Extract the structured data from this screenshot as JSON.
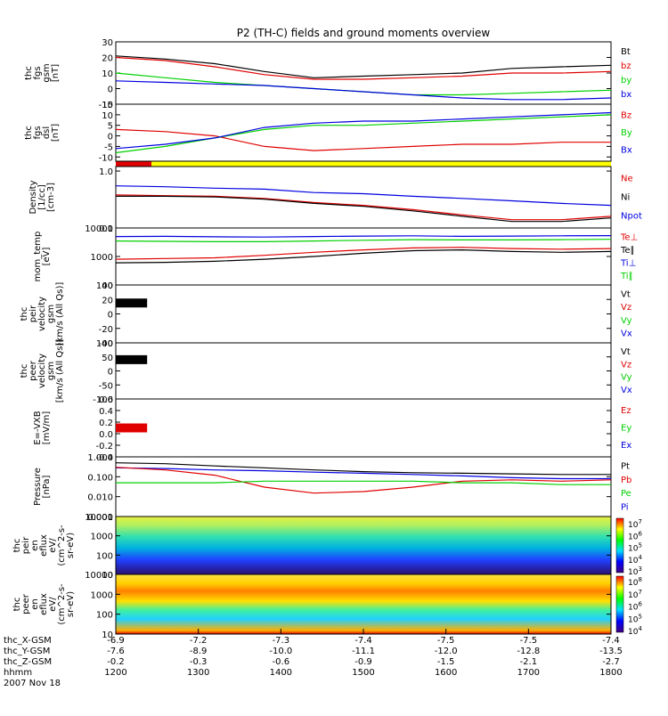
{
  "title": "P2 (TH-C) fields and ground moments overview",
  "date_label": "2007 Nov 18",
  "colors": {
    "black": "#000000",
    "red": "#e00000",
    "green": "#00d000",
    "blue": "#0000e0",
    "yellow": "#ffff00"
  },
  "chart_data": {
    "type": "line",
    "x_ticks": [
      "1200",
      "1300",
      "1400",
      "1500",
      "1600",
      "1700",
      "1800"
    ],
    "xlim": [
      1200,
      1800
    ],
    "footer_rows": [
      {
        "label": "thc_X-GSM",
        "values": [
          "-6.9",
          "-7.2",
          "-7.3",
          "-7.4",
          "-7.5",
          "-7.5",
          "-7.4"
        ]
      },
      {
        "label": "thc_Y-GSM",
        "values": [
          "-7.6",
          "-8.9",
          "-10.0",
          "-11.1",
          "-12.0",
          "-12.8",
          "-13.5"
        ]
      },
      {
        "label": "thc_Z-GSM",
        "values": [
          "-0.2",
          "-0.3",
          "-0.6",
          "-0.9",
          "-1.5",
          "-2.1",
          "-2.7"
        ]
      },
      {
        "label": "hhmm",
        "values": [
          "1200",
          "1300",
          "1400",
          "1500",
          "1600",
          "1700",
          "1800"
        ]
      }
    ],
    "panels": [
      {
        "id": "fgs_gsm",
        "ylabel": [
          "thc",
          "fgs",
          "gsm",
          "[nT]"
        ],
        "ylim": [
          -10,
          30
        ],
        "scale": "linear",
        "ticks": [
          "30",
          "20",
          "10",
          "0",
          "-10"
        ],
        "tick_vals": [
          30,
          20,
          10,
          0,
          -10
        ],
        "legend": [
          {
            "text": "Bt",
            "color": "black"
          },
          {
            "text": "bz",
            "color": "red"
          },
          {
            "text": "by",
            "color": "green"
          },
          {
            "text": "bx",
            "color": "blue"
          }
        ],
        "series": [
          {
            "name": "Bt",
            "color": "black",
            "x": [
              1200,
              1260,
              1320,
              1380,
              1440,
              1500,
              1560,
              1620,
              1680,
              1740,
              1800
            ],
            "y": [
              21,
              19,
              16,
              11,
              7,
              8,
              9,
              10,
              13,
              14,
              15
            ]
          },
          {
            "name": "bz",
            "color": "red",
            "x": [
              1200,
              1260,
              1320,
              1380,
              1440,
              1500,
              1560,
              1620,
              1680,
              1740,
              1800
            ],
            "y": [
              20,
              18,
              14,
              9,
              6,
              6,
              7,
              8,
              10,
              10,
              11
            ]
          },
          {
            "name": "by",
            "color": "green",
            "x": [
              1200,
              1260,
              1320,
              1380,
              1440,
              1500,
              1560,
              1620,
              1680,
              1740,
              1800
            ],
            "y": [
              10,
              7,
              4,
              2,
              0,
              -2,
              -4,
              -4,
              -3,
              -2,
              -1
            ]
          },
          {
            "name": "bx",
            "color": "blue",
            "x": [
              1200,
              1260,
              1320,
              1380,
              1440,
              1500,
              1560,
              1620,
              1680,
              1740,
              1800
            ],
            "y": [
              5,
              4,
              3,
              2,
              0,
              -2,
              -4,
              -6,
              -7,
              -7,
              -6
            ]
          }
        ]
      },
      {
        "id": "fgs_dsl",
        "ylabel": [
          "thc",
          "fgs",
          "dsl",
          "[nT]"
        ],
        "ylim": [
          -12,
          15
        ],
        "scale": "linear",
        "ticks": [
          "15",
          "10",
          "5",
          "0",
          "-5",
          "-10"
        ],
        "tick_vals": [
          15,
          10,
          5,
          0,
          -5,
          -10
        ],
        "legend": [
          {
            "text": "Bz",
            "color": "red"
          },
          {
            "text": "By",
            "color": "green"
          },
          {
            "text": "Bx",
            "color": "blue"
          }
        ],
        "series": [
          {
            "name": "Bz",
            "color": "red",
            "x": [
              1200,
              1260,
              1320,
              1380,
              1440,
              1500,
              1560,
              1620,
              1680,
              1740,
              1800
            ],
            "y": [
              3,
              2,
              0,
              -5,
              -7,
              -6,
              -5,
              -4,
              -4,
              -3,
              -3
            ]
          },
          {
            "name": "By",
            "color": "green",
            "x": [
              1200,
              1260,
              1320,
              1380,
              1440,
              1500,
              1560,
              1620,
              1680,
              1740,
              1800
            ],
            "y": [
              -8,
              -5,
              -1,
              3,
              5,
              5,
              6,
              7,
              8,
              9,
              10
            ]
          },
          {
            "name": "Bx",
            "color": "blue",
            "x": [
              1200,
              1260,
              1320,
              1380,
              1440,
              1500,
              1560,
              1620,
              1680,
              1740,
              1800
            ],
            "y": [
              -6,
              -4,
              -1,
              4,
              6,
              7,
              7,
              8,
              9,
              10,
              11
            ]
          }
        ]
      },
      {
        "id": "density",
        "ylabel": [
          "Density",
          "[1/cc]",
          "[cm-3]"
        ],
        "ylim": [
          0.1,
          1.2
        ],
        "scale": "log",
        "ticks": [
          "1.0",
          "0.1"
        ],
        "tick_vals": [
          1.0,
          0.1
        ],
        "legend": [
          {
            "text": "Ne",
            "color": "red"
          },
          {
            "text": "Ni",
            "color": "black"
          },
          {
            "text": "Npot",
            "color": "blue"
          }
        ],
        "series": [
          {
            "name": "Npot",
            "color": "blue",
            "x": [
              1200,
              1260,
              1320,
              1380,
              1440,
              1500,
              1560,
              1620,
              1680,
              1740,
              1800
            ],
            "y": [
              0.55,
              0.53,
              0.5,
              0.48,
              0.42,
              0.4,
              0.36,
              0.33,
              0.3,
              0.27,
              0.25
            ]
          },
          {
            "name": "Ne",
            "color": "red",
            "x": [
              1200,
              1260,
              1320,
              1380,
              1440,
              1500,
              1560,
              1620,
              1680,
              1740,
              1800
            ],
            "y": [
              0.38,
              0.37,
              0.36,
              0.33,
              0.28,
              0.25,
              0.21,
              0.17,
              0.14,
              0.14,
              0.16
            ]
          },
          {
            "name": "Ni",
            "color": "black",
            "x": [
              1200,
              1260,
              1320,
              1380,
              1440,
              1500,
              1560,
              1620,
              1680,
              1740,
              1800
            ],
            "y": [
              0.36,
              0.36,
              0.35,
              0.32,
              0.27,
              0.24,
              0.2,
              0.16,
              0.13,
              0.13,
              0.15
            ]
          }
        ]
      },
      {
        "id": "mom_temp",
        "ylabel": [
          "mom_temp",
          "[eV]"
        ],
        "ylim": [
          100,
          10000
        ],
        "scale": "log",
        "ticks": [
          "10000",
          "1000",
          "100"
        ],
        "tick_vals": [
          10000,
          1000,
          100
        ],
        "legend": [
          {
            "text": "Te⊥",
            "color": "red"
          },
          {
            "text": "Te∥",
            "color": "black"
          },
          {
            "text": "Ti⊥",
            "color": "blue"
          },
          {
            "text": "Ti∥",
            "color": "green"
          }
        ],
        "series": [
          {
            "name": "Ti⊥",
            "color": "blue",
            "x": [
              1200,
              1260,
              1320,
              1380,
              1440,
              1500,
              1560,
              1620,
              1680,
              1740,
              1800
            ],
            "y": [
              5000,
              5100,
              4900,
              4800,
              5000,
              5200,
              5300,
              5100,
              5200,
              5300,
              5400
            ]
          },
          {
            "name": "Ti∥",
            "color": "green",
            "x": [
              1200,
              1260,
              1320,
              1380,
              1440,
              1500,
              1560,
              1620,
              1680,
              1740,
              1800
            ],
            "y": [
              3500,
              3400,
              3300,
              3300,
              3500,
              3700,
              3900,
              3800,
              3800,
              3900,
              4000
            ]
          },
          {
            "name": "Te⊥",
            "color": "red",
            "x": [
              1200,
              1260,
              1320,
              1380,
              1440,
              1500,
              1560,
              1620,
              1680,
              1740,
              1800
            ],
            "y": [
              800,
              850,
              900,
              1100,
              1400,
              1700,
              2000,
              2100,
              1900,
              1800,
              1900
            ]
          },
          {
            "name": "Te∥",
            "color": "black",
            "x": [
              1200,
              1260,
              1320,
              1380,
              1440,
              1500,
              1560,
              1620,
              1680,
              1740,
              1800
            ],
            "y": [
              600,
              620,
              680,
              800,
              1000,
              1300,
              1600,
              1700,
              1500,
              1400,
              1500
            ]
          }
        ]
      },
      {
        "id": "peir_vel",
        "ylabel": [
          "thc",
          "peir",
          "velocity",
          "gsm",
          "[km/s (All Qs)]"
        ],
        "ylim": [
          -40,
          40
        ],
        "scale": "linear",
        "ticks": [
          "40",
          "20",
          "0",
          "-20",
          "-40"
        ],
        "tick_vals": [
          40,
          20,
          0,
          -20,
          -40
        ],
        "legend": [
          {
            "text": "Vt",
            "color": "black"
          },
          {
            "text": "Vz",
            "color": "red"
          },
          {
            "text": "Vy",
            "color": "green"
          },
          {
            "text": "Vx",
            "color": "blue"
          }
        ],
        "series": [
          {
            "name": "Vt",
            "color": "black",
            "x": [
              1200,
              1238
            ],
            "y": [
              15,
              15
            ]
          }
        ]
      },
      {
        "id": "peer_vel",
        "ylabel": [
          "thc",
          "peer",
          "velocity",
          "gsm",
          "[km/s (All Qs)]"
        ],
        "ylim": [
          -100,
          100
        ],
        "scale": "linear",
        "ticks": [
          "100",
          "50",
          "0",
          "-50",
          "-100"
        ],
        "tick_vals": [
          100,
          50,
          0,
          -50,
          -100
        ],
        "legend": [
          {
            "text": "Vt",
            "color": "black"
          },
          {
            "text": "Vz",
            "color": "red"
          },
          {
            "text": "Vy",
            "color": "green"
          },
          {
            "text": "Vx",
            "color": "blue"
          }
        ],
        "series": [
          {
            "name": "Vt",
            "color": "black",
            "x": [
              1200,
              1238
            ],
            "y": [
              40,
              40
            ]
          }
        ]
      },
      {
        "id": "efield",
        "ylabel": [
          "E=-VXB",
          "[mV/m]"
        ],
        "ylim": [
          -0.4,
          0.6
        ],
        "scale": "linear",
        "ticks": [
          "0.6",
          "0.4",
          "0.2",
          "0.0",
          "-0.2",
          "-0.4"
        ],
        "tick_vals": [
          0.6,
          0.4,
          0.2,
          0.0,
          -0.2,
          -0.4
        ],
        "legend": [
          {
            "text": "Ez",
            "color": "red"
          },
          {
            "text": "Ey",
            "color": "green"
          },
          {
            "text": "Ex",
            "color": "blue"
          }
        ],
        "series": [
          {
            "name": "Ez",
            "color": "red",
            "x": [
              1200,
              1238
            ],
            "y": [
              0.1,
              0.1
            ]
          }
        ]
      },
      {
        "id": "pressure",
        "ylabel": [
          "Pressure",
          "[nPa]"
        ],
        "ylim": [
          0.001,
          1.0
        ],
        "scale": "log",
        "ticks": [
          "1.000",
          "0.100",
          "0.010",
          "0.001"
        ],
        "tick_vals": [
          1.0,
          0.1,
          0.01,
          0.001
        ],
        "legend": [
          {
            "text": "Pt",
            "color": "black"
          },
          {
            "text": "Pb",
            "color": "red"
          },
          {
            "text": "Pe",
            "color": "green"
          },
          {
            "text": "Pi",
            "color": "blue"
          }
        ],
        "series": [
          {
            "name": "Pt",
            "color": "black",
            "x": [
              1200,
              1260,
              1320,
              1380,
              1440,
              1500,
              1560,
              1620,
              1680,
              1740,
              1800
            ],
            "y": [
              0.5,
              0.45,
              0.35,
              0.28,
              0.22,
              0.18,
              0.16,
              0.15,
              0.14,
              0.13,
              0.13
            ]
          },
          {
            "name": "Pi",
            "color": "blue",
            "x": [
              1200,
              1260,
              1320,
              1380,
              1440,
              1500,
              1560,
              1620,
              1680,
              1740,
              1800
            ],
            "y": [
              0.28,
              0.26,
              0.22,
              0.2,
              0.17,
              0.15,
              0.13,
              0.11,
              0.09,
              0.08,
              0.08
            ]
          },
          {
            "name": "Pb",
            "color": "red",
            "x": [
              1200,
              1260,
              1320,
              1380,
              1440,
              1500,
              1560,
              1620,
              1680,
              1740,
              1800
            ],
            "y": [
              0.3,
              0.22,
              0.12,
              0.03,
              0.015,
              0.018,
              0.03,
              0.06,
              0.07,
              0.06,
              0.07
            ]
          },
          {
            "name": "Pe",
            "color": "green",
            "x": [
              1200,
              1260,
              1320,
              1380,
              1440,
              1500,
              1560,
              1620,
              1680,
              1740,
              1800
            ],
            "y": [
              0.05,
              0.05,
              0.05,
              0.06,
              0.06,
              0.06,
              0.06,
              0.05,
              0.05,
              0.04,
              0.04
            ]
          }
        ]
      },
      {
        "id": "peir_en",
        "ylabel": [
          "thc",
          "peir",
          "en",
          "eflux",
          "eV/",
          "(cm^2-s-",
          "sr-eV)"
        ],
        "ylim": [
          10,
          10000
        ],
        "scale": "log",
        "ticks": [
          "10000",
          "1000",
          "100",
          "10"
        ],
        "tick_vals": [
          10000,
          1000,
          100,
          10
        ],
        "colorbar": [
          "10^7",
          "10^6",
          "10^5",
          "10^4",
          "10^3"
        ]
      },
      {
        "id": "peer_en",
        "ylabel": [
          "thc",
          "peer",
          "en",
          "eflux",
          "eV/",
          "(cm^2-s-",
          "sr-eV)"
        ],
        "ylim": [
          10,
          10000
        ],
        "scale": "log",
        "ticks": [
          "10000",
          "1000",
          "100",
          "10"
        ],
        "tick_vals": [
          10000,
          1000,
          100,
          10
        ],
        "colorbar": [
          "10^8",
          "10^7",
          "10^6",
          "10^5",
          "10^4"
        ]
      }
    ]
  }
}
